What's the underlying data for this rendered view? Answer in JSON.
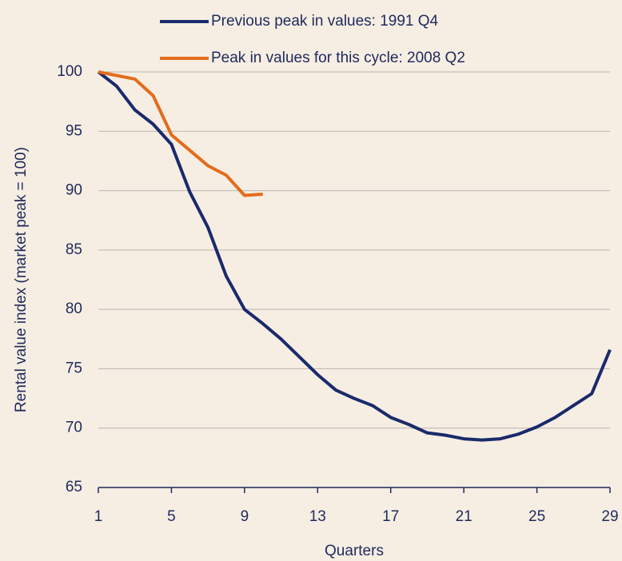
{
  "chart_data": {
    "type": "line",
    "x_label": "Quarters",
    "y_label": "Rental value index (market peak = 100)",
    "x": [
      1,
      2,
      3,
      4,
      5,
      6,
      7,
      8,
      9,
      10,
      11,
      12,
      13,
      14,
      15,
      16,
      17,
      18,
      19,
      20,
      21,
      22,
      23,
      24,
      25,
      26,
      27,
      28,
      29
    ],
    "series": [
      {
        "name": "Previous peak in values: 1991 Q4",
        "color": "#1a2a6c",
        "values": [
          100,
          98.8,
          96.8,
          95.6,
          93.9,
          89.9,
          86.9,
          82.8,
          80.0,
          78.8,
          77.5,
          76.0,
          74.5,
          73.2,
          72.5,
          71.9,
          70.9,
          70.3,
          69.6,
          69.4,
          69.1,
          69.0,
          69.1,
          69.5,
          70.1,
          70.9,
          71.9,
          72.9,
          76.6
        ]
      },
      {
        "name": "Peak in values for this cycle: 2008 Q2",
        "color": "#e36c1e",
        "values": [
          100,
          99.7,
          99.4,
          98.0,
          94.7,
          93.4,
          92.1,
          91.3,
          89.6,
          89.7,
          null,
          null,
          null,
          null,
          null,
          null,
          null,
          null,
          null,
          null,
          null,
          null,
          null,
          null,
          null,
          null,
          null,
          null,
          null
        ]
      }
    ],
    "xlim": [
      1,
      29
    ],
    "xticks": [
      1,
      5,
      9,
      13,
      17,
      21,
      25,
      29
    ],
    "ylim": [
      65,
      100
    ],
    "yticks": [
      65,
      70,
      75,
      80,
      85,
      90,
      95,
      100
    ],
    "grid": true,
    "legend": "top"
  }
}
